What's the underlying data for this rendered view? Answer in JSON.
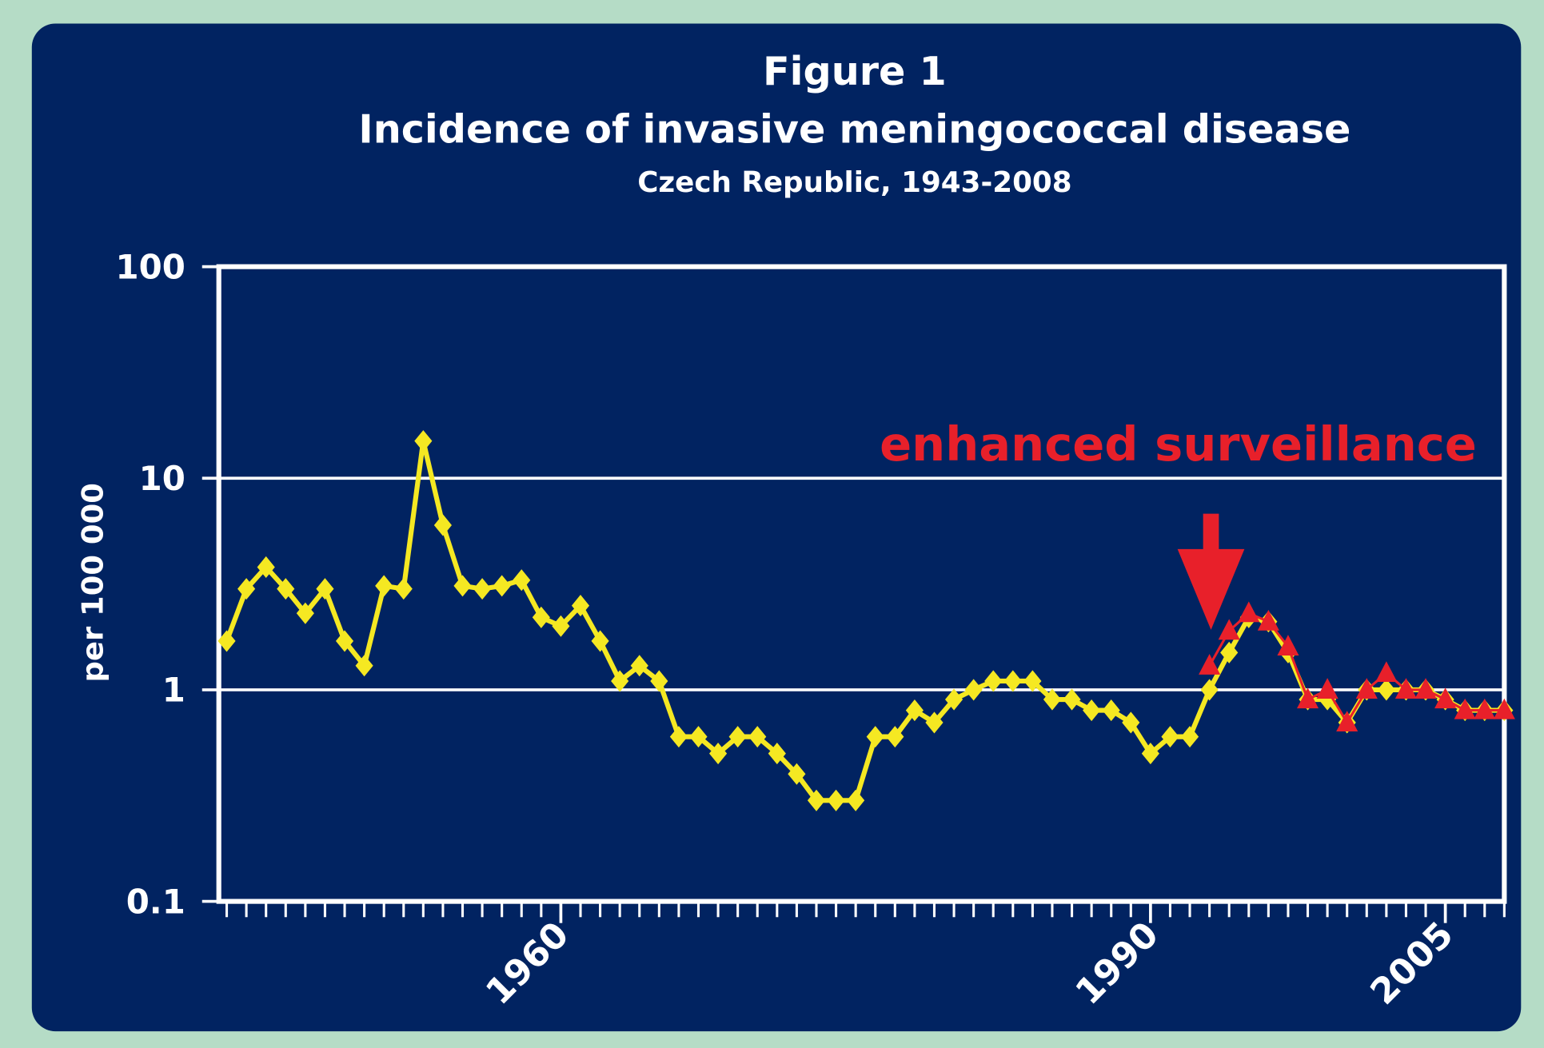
{
  "chart_data": {
    "type": "line",
    "title": "Figure 1",
    "subtitle": "Incidence of invasive meningococcal disease",
    "subtitle2": "Czech Republic, 1943-2008",
    "ylabel": "per 100 000",
    "annotation": "enhanced surveillance",
    "log_y": true,
    "grid": true,
    "ylim": [
      0.1,
      100
    ],
    "yticks": [
      0.1,
      1,
      10,
      100
    ],
    "xlim": [
      1943,
      2008
    ],
    "xticks": [
      1960,
      1990,
      2005
    ],
    "x": [
      1943,
      1944,
      1945,
      1946,
      1947,
      1948,
      1949,
      1950,
      1951,
      1952,
      1953,
      1954,
      1955,
      1956,
      1957,
      1958,
      1959,
      1960,
      1961,
      1962,
      1963,
      1964,
      1965,
      1966,
      1967,
      1968,
      1969,
      1970,
      1971,
      1972,
      1973,
      1974,
      1975,
      1976,
      1977,
      1978,
      1979,
      1980,
      1981,
      1982,
      1983,
      1984,
      1985,
      1986,
      1987,
      1988,
      1989,
      1990,
      1991,
      1992,
      1993,
      1994,
      1995,
      1996,
      1997,
      1998,
      1999,
      2000,
      2001,
      2002,
      2003,
      2004,
      2005,
      2006,
      2007,
      2008
    ],
    "series": [
      {
        "color": "#f5e822",
        "marker": "diamond",
        "values": [
          1.7,
          3.0,
          3.8,
          3.0,
          2.3,
          3.0,
          1.7,
          1.3,
          3.1,
          3.0,
          15,
          6,
          3.1,
          3.0,
          3.1,
          3.3,
          2.2,
          2.0,
          2.5,
          1.7,
          1.1,
          1.3,
          1.1,
          0.6,
          0.6,
          0.5,
          0.6,
          0.6,
          0.5,
          0.4,
          0.3,
          0.3,
          0.3,
          0.6,
          0.6,
          0.8,
          0.7,
          0.9,
          1.0,
          1.1,
          1.1,
          1.1,
          0.9,
          0.9,
          0.8,
          0.8,
          0.7,
          0.5,
          0.6,
          0.6,
          1.0,
          1.5,
          2.2,
          2.1,
          1.5,
          0.9,
          0.9,
          0.7,
          1.0,
          1.0,
          1.0,
          1.0,
          0.9,
          0.8,
          0.8,
          0.8
        ]
      },
      {
        "color": "#e8202a",
        "marker": "triangle",
        "values": [
          null,
          null,
          null,
          null,
          null,
          null,
          null,
          null,
          null,
          null,
          null,
          null,
          null,
          null,
          null,
          null,
          null,
          null,
          null,
          null,
          null,
          null,
          null,
          null,
          null,
          null,
          null,
          null,
          null,
          null,
          null,
          null,
          null,
          null,
          null,
          null,
          null,
          null,
          null,
          null,
          null,
          null,
          null,
          null,
          null,
          null,
          null,
          null,
          null,
          null,
          1.3,
          1.9,
          2.3,
          2.1,
          1.6,
          0.9,
          1.0,
          0.7,
          1.0,
          1.2,
          1.0,
          1.0,
          0.9,
          0.8,
          0.8,
          0.8
        ]
      }
    ]
  }
}
